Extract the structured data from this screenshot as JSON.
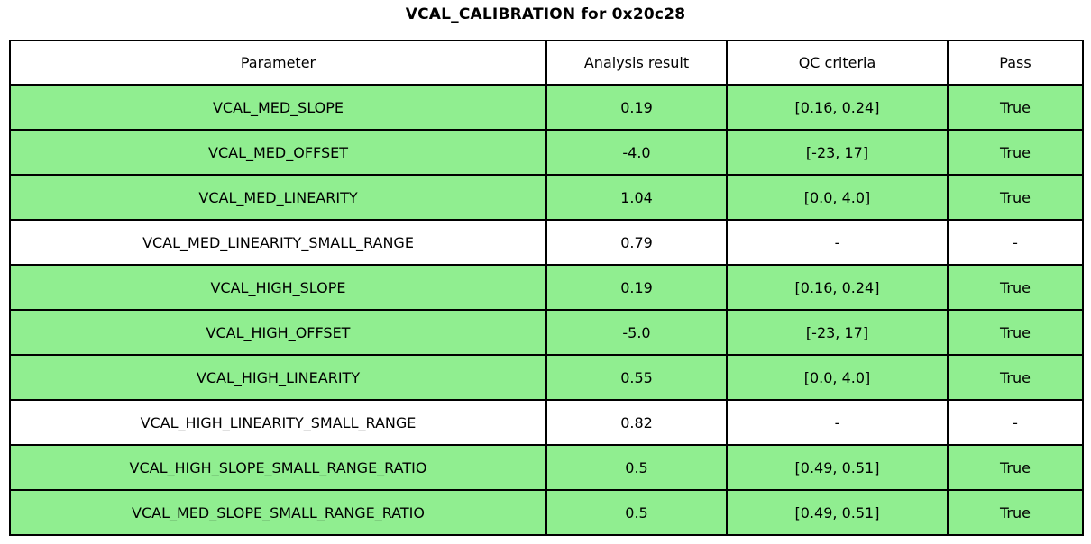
{
  "title": "VCAL_CALIBRATION for 0x20c28",
  "colors": {
    "row_pass": "#90EE90",
    "row_default": "#FFFFFF",
    "border": "#000000",
    "text": "#000000"
  },
  "table": {
    "headers": {
      "parameter": "Parameter",
      "analysis_result": "Analysis result",
      "qc_criteria": "QC criteria",
      "pass": "Pass"
    },
    "rows": [
      {
        "parameter": "VCAL_MED_SLOPE",
        "analysis_result": "0.19",
        "qc_criteria": "[0.16, 0.24]",
        "pass": "True",
        "highlight": true
      },
      {
        "parameter": "VCAL_MED_OFFSET",
        "analysis_result": "-4.0",
        "qc_criteria": "[-23, 17]",
        "pass": "True",
        "highlight": true
      },
      {
        "parameter": "VCAL_MED_LINEARITY",
        "analysis_result": "1.04",
        "qc_criteria": "[0.0, 4.0]",
        "pass": "True",
        "highlight": true
      },
      {
        "parameter": "VCAL_MED_LINEARITY_SMALL_RANGE",
        "analysis_result": "0.79",
        "qc_criteria": "-",
        "pass": "-",
        "highlight": false
      },
      {
        "parameter": "VCAL_HIGH_SLOPE",
        "analysis_result": "0.19",
        "qc_criteria": "[0.16, 0.24]",
        "pass": "True",
        "highlight": true
      },
      {
        "parameter": "VCAL_HIGH_OFFSET",
        "analysis_result": "-5.0",
        "qc_criteria": "[-23, 17]",
        "pass": "True",
        "highlight": true
      },
      {
        "parameter": "VCAL_HIGH_LINEARITY",
        "analysis_result": "0.55",
        "qc_criteria": "[0.0, 4.0]",
        "pass": "True",
        "highlight": true
      },
      {
        "parameter": "VCAL_HIGH_LINEARITY_SMALL_RANGE",
        "analysis_result": "0.82",
        "qc_criteria": "-",
        "pass": "-",
        "highlight": false
      },
      {
        "parameter": "VCAL_HIGH_SLOPE_SMALL_RANGE_RATIO",
        "analysis_result": "0.5",
        "qc_criteria": "[0.49, 0.51]",
        "pass": "True",
        "highlight": true
      },
      {
        "parameter": "VCAL_MED_SLOPE_SMALL_RANGE_RATIO",
        "analysis_result": "0.5",
        "qc_criteria": "[0.49, 0.51]",
        "pass": "True",
        "highlight": true
      }
    ]
  }
}
